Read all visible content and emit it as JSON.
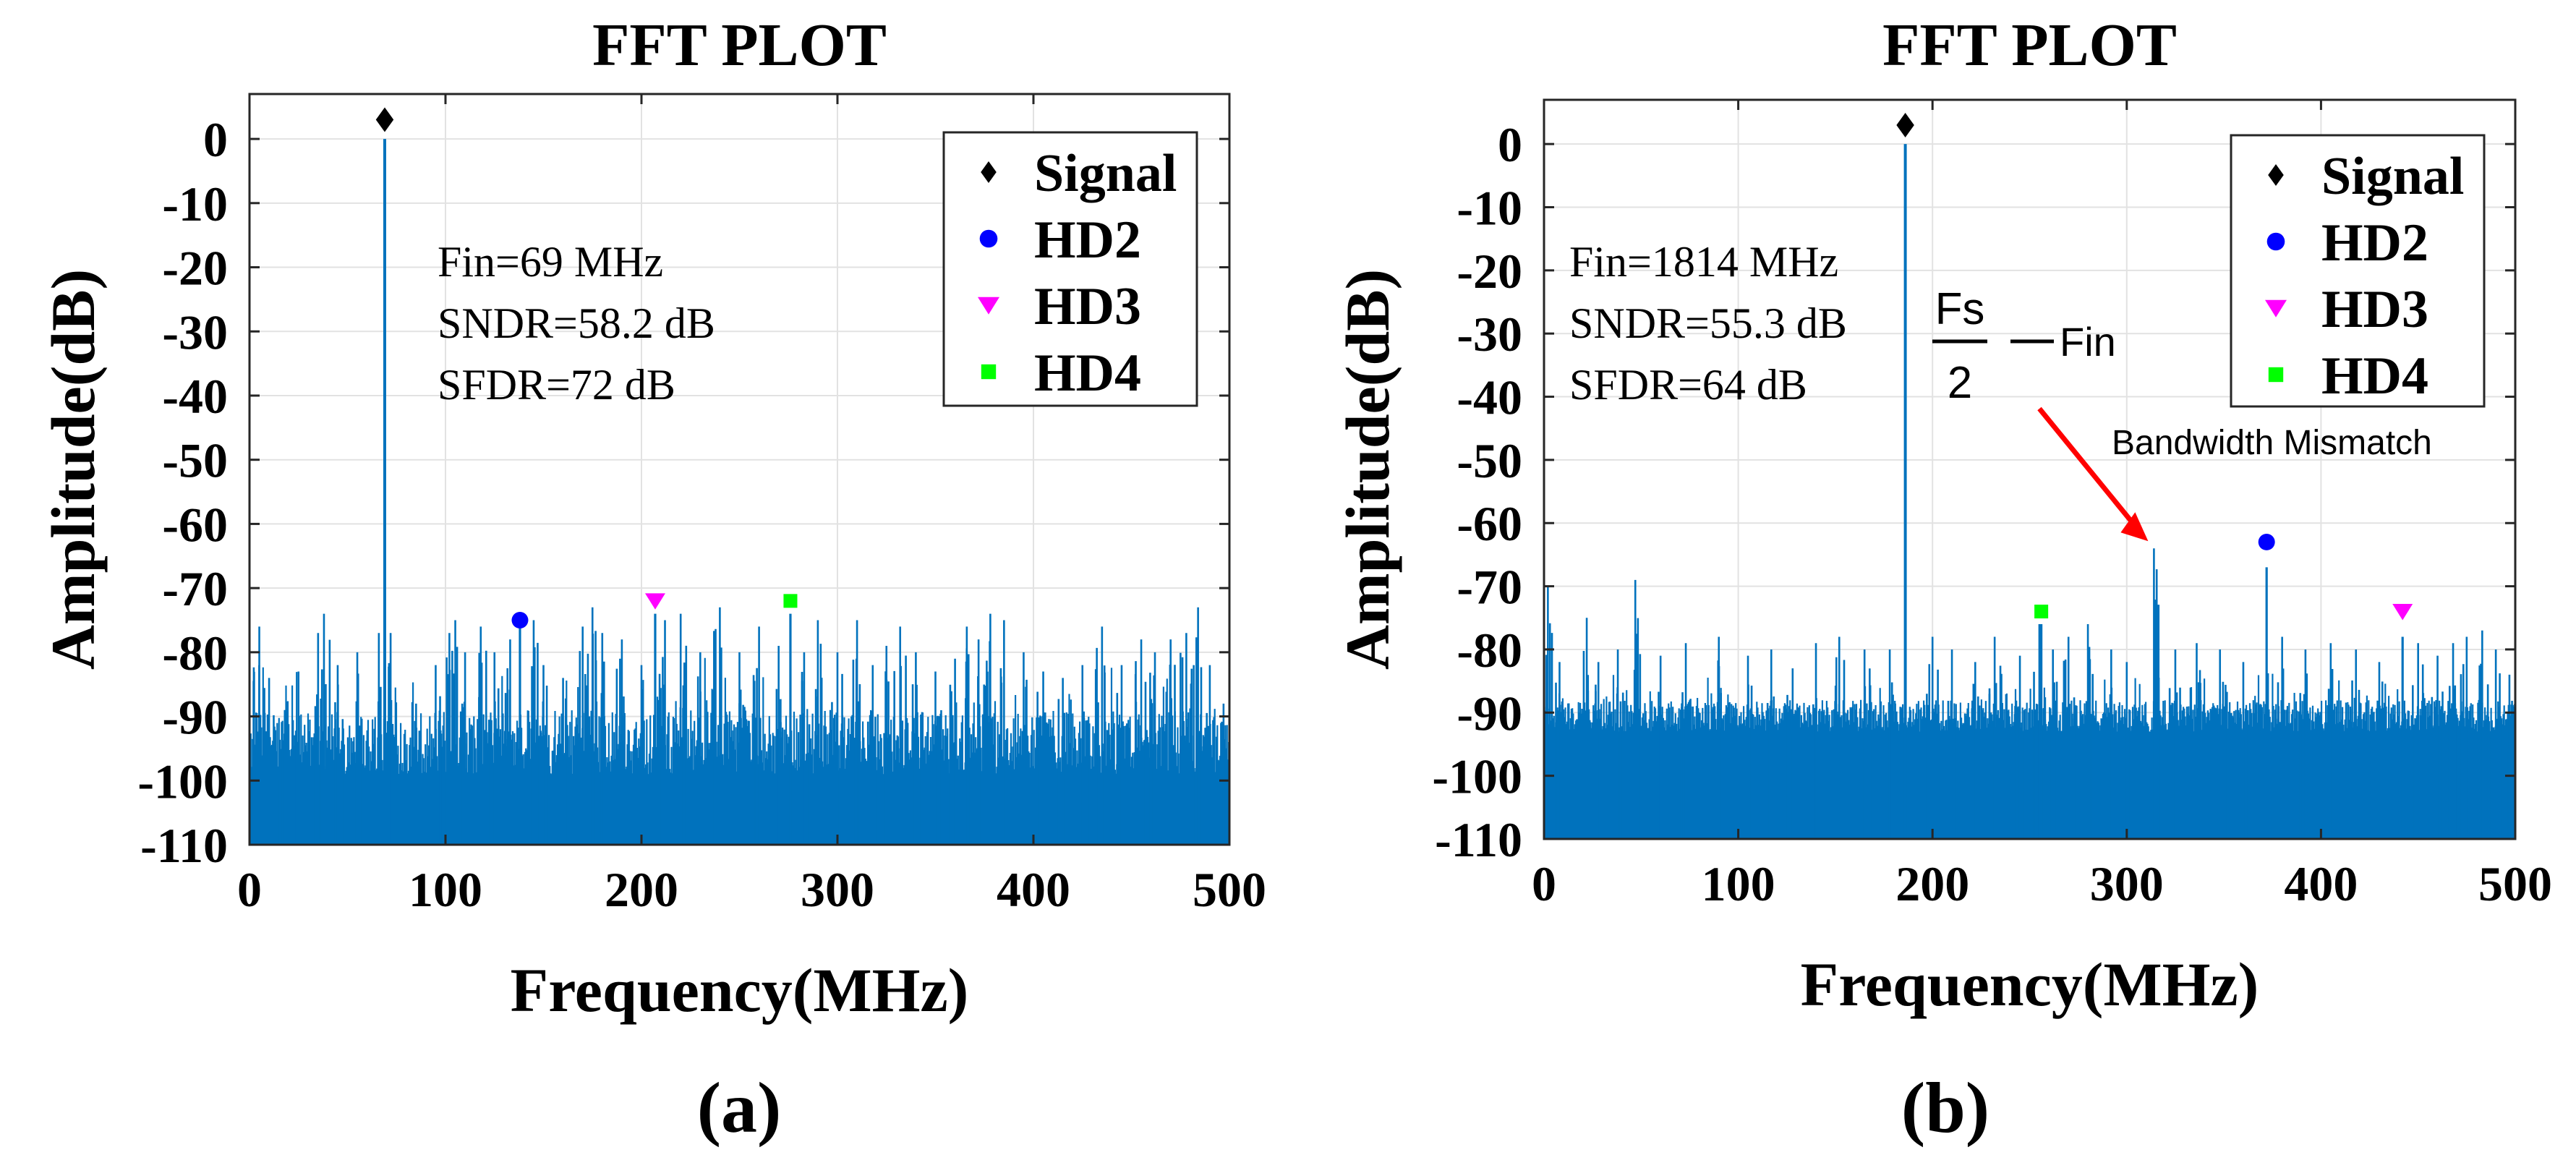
{
  "colors": {
    "spectrum": "#0072bd",
    "signal": "#000000",
    "hd2": "#0000ff",
    "hd3": "#ff00ff",
    "hd4": "#00ff00",
    "grid": "#e2e2e2",
    "axis": "#262626",
    "arrow": "#ff0000"
  },
  "legend": {
    "signal": "Signal",
    "hd2": "HD2",
    "hd3": "HD3",
    "hd4": "HD4"
  },
  "chart_data": [
    {
      "type": "line",
      "title": "FFT PLOT",
      "caption": "(a)",
      "xlabel": "Frequency(MHz)",
      "ylabel": "Amplitude(dB)",
      "xlim": [
        0,
        500
      ],
      "ylim": [
        -110,
        7
      ],
      "xticks": [
        0,
        100,
        200,
        300,
        400,
        500
      ],
      "yticks": [
        0,
        -10,
        -20,
        -30,
        -40,
        -50,
        -60,
        -70,
        -80,
        -90,
        -100,
        -110
      ],
      "grid": true,
      "legend_position": "top-right",
      "annotations": [
        "Fin=69 MHz",
        "SNDR=58.2 dB",
        "SFDR=72 dB"
      ],
      "noise_floor_db": -97,
      "spurs": [
        {
          "x": 5,
          "y": -76
        },
        {
          "x": 10,
          "y": -84
        },
        {
          "x": 18,
          "y": -89
        },
        {
          "x": 25,
          "y": -83
        },
        {
          "x": 35,
          "y": -77
        },
        {
          "x": 38,
          "y": -74
        },
        {
          "x": 45,
          "y": -82
        },
        {
          "x": 55,
          "y": -80
        },
        {
          "x": 66,
          "y": -77
        },
        {
          "x": 72,
          "y": -77
        },
        {
          "x": 85,
          "y": -88
        },
        {
          "x": 95,
          "y": -82
        },
        {
          "x": 102,
          "y": -77
        },
        {
          "x": 105,
          "y": -75
        },
        {
          "x": 110,
          "y": -80
        },
        {
          "x": 118,
          "y": -76
        },
        {
          "x": 125,
          "y": -80
        },
        {
          "x": 133,
          "y": -78
        },
        {
          "x": 145,
          "y": -75
        },
        {
          "x": 150,
          "y": -82
        },
        {
          "x": 160,
          "y": -84
        },
        {
          "x": 170,
          "y": -76
        },
        {
          "x": 175,
          "y": -73
        },
        {
          "x": 180,
          "y": -77
        },
        {
          "x": 190,
          "y": -78
        },
        {
          "x": 200,
          "y": -82
        },
        {
          "x": 212,
          "y": -75
        },
        {
          "x": 220,
          "y": -74
        },
        {
          "x": 230,
          "y": -80
        },
        {
          "x": 240,
          "y": -73
        },
        {
          "x": 250,
          "y": -80
        },
        {
          "x": 260,
          "y": -76
        },
        {
          "x": 270,
          "y": -79
        },
        {
          "x": 283,
          "y": -80
        },
        {
          "x": 290,
          "y": -75
        },
        {
          "x": 300,
          "y": -80
        },
        {
          "x": 310,
          "y": -75
        },
        {
          "x": 318,
          "y": -82
        },
        {
          "x": 325,
          "y": -79
        },
        {
          "x": 332,
          "y": -76
        },
        {
          "x": 340,
          "y": -80
        },
        {
          "x": 350,
          "y": -83
        },
        {
          "x": 360,
          "y": -81
        },
        {
          "x": 366,
          "y": -76
        },
        {
          "x": 372,
          "y": -78
        },
        {
          "x": 378,
          "y": -74
        },
        {
          "x": 385,
          "y": -75
        },
        {
          "x": 395,
          "y": -80
        },
        {
          "x": 405,
          "y": -83
        },
        {
          "x": 415,
          "y": -84
        },
        {
          "x": 425,
          "y": -82
        },
        {
          "x": 435,
          "y": -76
        },
        {
          "x": 445,
          "y": -82
        },
        {
          "x": 455,
          "y": -78
        },
        {
          "x": 462,
          "y": -80
        },
        {
          "x": 470,
          "y": -78
        },
        {
          "x": 478,
          "y": -77
        },
        {
          "x": 484,
          "y": -73
        },
        {
          "x": 490,
          "y": -82
        },
        {
          "x": 497,
          "y": -88
        }
      ],
      "series": [
        {
          "name": "Signal",
          "marker": "diamond",
          "x": [
            69
          ],
          "y": [
            3
          ],
          "stem_top": 0
        },
        {
          "name": "HD2",
          "marker": "circle",
          "x": [
            138
          ],
          "y": [
            -75
          ],
          "stem_top": -76
        },
        {
          "name": "HD3",
          "marker": "triangle-down",
          "x": [
            207
          ],
          "y": [
            -72
          ],
          "stem_top": -74
        },
        {
          "name": "HD4",
          "marker": "square",
          "x": [
            276
          ],
          "y": [
            -72
          ],
          "stem_top": -74
        }
      ]
    },
    {
      "type": "line",
      "title": "FFT PLOT",
      "caption": "(b)",
      "xlabel": "Frequency(MHz)",
      "ylabel": "Amplitude(dB)",
      "xlim": [
        0,
        500
      ],
      "ylim": [
        -110,
        7
      ],
      "xticks": [
        0,
        100,
        200,
        300,
        400,
        500
      ],
      "yticks": [
        0,
        -10,
        -20,
        -30,
        -40,
        -50,
        -60,
        -70,
        -80,
        -90,
        -100,
        -110
      ],
      "grid": true,
      "legend_position": "top-right",
      "annotations": [
        "Fin=1814 MHz",
        "SNDR=55.3 dB",
        "SFDR=64 dB"
      ],
      "fraction_annotation": {
        "numerator": "Fs",
        "denominator": "2",
        "suffix": "Fin"
      },
      "mismatch_label": "Bandwidth Mismatch",
      "mismatch_point": {
        "x": 314,
        "y": -64
      },
      "noise_floor_db": -92,
      "spurs": [
        {
          "x": 2,
          "y": -70
        },
        {
          "x": 8,
          "y": -82
        },
        {
          "x": 22,
          "y": -75
        },
        {
          "x": 28,
          "y": -82
        },
        {
          "x": 38,
          "y": -80
        },
        {
          "x": 47,
          "y": -69
        },
        {
          "x": 60,
          "y": -81
        },
        {
          "x": 73,
          "y": -79
        },
        {
          "x": 90,
          "y": -78
        },
        {
          "x": 105,
          "y": -81
        },
        {
          "x": 117,
          "y": -80
        },
        {
          "x": 128,
          "y": -83
        },
        {
          "x": 140,
          "y": -79
        },
        {
          "x": 152,
          "y": -78
        },
        {
          "x": 165,
          "y": -80
        },
        {
          "x": 178,
          "y": -80
        },
        {
          "x": 200,
          "y": -78
        },
        {
          "x": 210,
          "y": -80
        },
        {
          "x": 222,
          "y": -82
        },
        {
          "x": 232,
          "y": -78
        },
        {
          "x": 245,
          "y": -81
        },
        {
          "x": 255,
          "y": -76
        },
        {
          "x": 262,
          "y": -80
        },
        {
          "x": 270,
          "y": -78
        },
        {
          "x": 280,
          "y": -76
        },
        {
          "x": 292,
          "y": -80
        },
        {
          "x": 300,
          "y": -82
        },
        {
          "x": 314,
          "y": -64
        },
        {
          "x": 325,
          "y": -80
        },
        {
          "x": 336,
          "y": -79
        },
        {
          "x": 348,
          "y": -80
        },
        {
          "x": 360,
          "y": -82
        },
        {
          "x": 380,
          "y": -78
        },
        {
          "x": 392,
          "y": -80
        },
        {
          "x": 405,
          "y": -79
        },
        {
          "x": 418,
          "y": -80
        },
        {
          "x": 430,
          "y": -82
        },
        {
          "x": 450,
          "y": -79
        },
        {
          "x": 460,
          "y": -81
        },
        {
          "x": 468,
          "y": -79
        },
        {
          "x": 475,
          "y": -78
        },
        {
          "x": 483,
          "y": -77
        },
        {
          "x": 490,
          "y": -80
        },
        {
          "x": 497,
          "y": -84
        }
      ],
      "series": [
        {
          "name": "Signal",
          "marker": "diamond",
          "x": [
            186
          ],
          "y": [
            3
          ],
          "stem_top": 0
        },
        {
          "name": "HD2",
          "marker": "circle",
          "x": [
            372
          ],
          "y": [
            -63
          ],
          "stem_top": -67
        },
        {
          "name": "HD3",
          "marker": "triangle-down",
          "x": [
            442
          ],
          "y": [
            -74
          ],
          "stem_top": -78
        },
        {
          "name": "HD4",
          "marker": "square",
          "x": [
            256
          ],
          "y": [
            -74
          ],
          "stem_top": -76
        }
      ]
    }
  ]
}
